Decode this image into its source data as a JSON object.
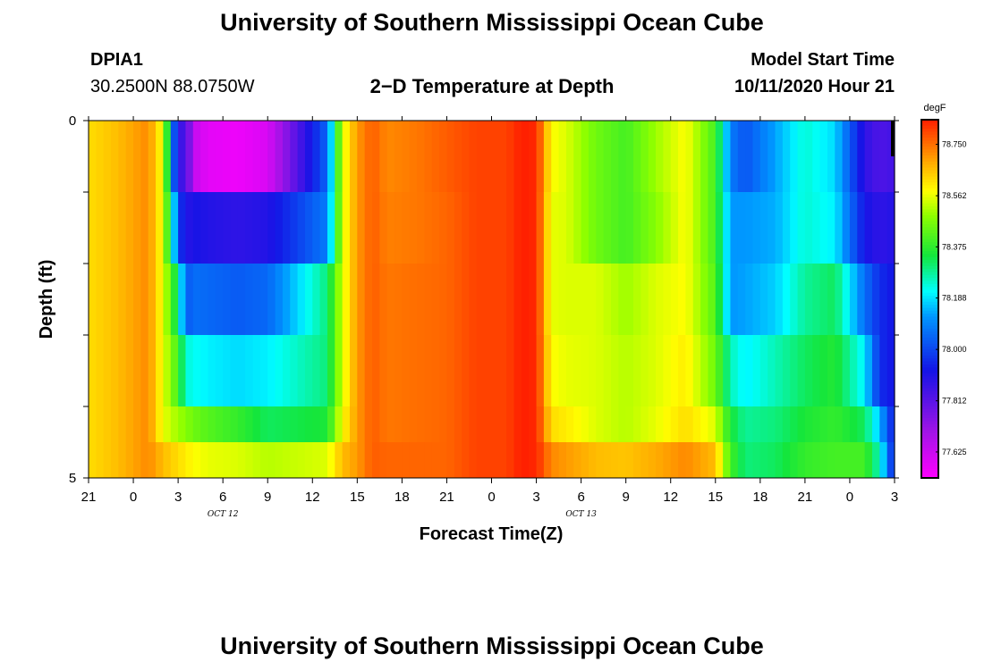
{
  "header": {
    "title": "University of Southern Mississippi Ocean Cube",
    "station_id": "DPIA1",
    "station_coords": "30.2500N 88.0750W",
    "plot_title": "2−D Temperature at Depth",
    "model_start_label": "Model Start Time",
    "model_start_value": "10/11/2020 Hour 21"
  },
  "footer": {
    "title": "University of Southern Mississippi Ocean Cube"
  },
  "chart_data": {
    "type": "heatmap",
    "title": "2−D Temperature at Depth",
    "xlabel": "Forecast Time(Z)",
    "ylabel": "Depth (ft)",
    "x_tick_labels": [
      "21",
      "0",
      "3",
      "6",
      "9",
      "12",
      "15",
      "18",
      "21",
      "0",
      "3",
      "6",
      "9",
      "12",
      "15",
      "18",
      "21",
      "0",
      "3"
    ],
    "x_date_labels": [
      {
        "text": "OCT 12",
        "hour_index": 3
      },
      {
        "text": "OCT 13",
        "hour_index": 11
      }
    ],
    "y_tick_labels": [
      {
        "label": "0",
        "value": 0
      },
      {
        "label": "5",
        "value": 5
      }
    ],
    "y_range": [
      0,
      5
    ],
    "x_range_hours": [
      0,
      54
    ],
    "depth_levels_ft": [
      0.0,
      1.0,
      2.0,
      3.0,
      4.0,
      4.5
    ],
    "colorbar": {
      "unit": "degF",
      "min": 77.53,
      "max": 78.84,
      "labels": [
        "78.750",
        "78.562",
        "78.375",
        "78.188",
        "78.000",
        "77.812",
        "77.625"
      ],
      "label_values": [
        78.75,
        78.562,
        78.375,
        78.188,
        78.0,
        77.812,
        77.625
      ]
    },
    "series": [
      {
        "name": "surface",
        "times": [
          0,
          2,
          4,
          5,
          6,
          6.5,
          7,
          8,
          10,
          12,
          16,
          17,
          18,
          19,
          20,
          22,
          24,
          26,
          28,
          29,
          30,
          31,
          32,
          34,
          36,
          38,
          40,
          42,
          43,
          44,
          46,
          48,
          50,
          52,
          53,
          54
        ],
        "values": [
          78.62,
          78.66,
          78.72,
          78.56,
          77.83,
          77.88,
          77.64,
          77.58,
          77.56,
          77.6,
          78.05,
          78.55,
          78.7,
          78.77,
          78.72,
          78.74,
          78.77,
          78.8,
          78.8,
          78.84,
          78.83,
          78.58,
          78.55,
          78.45,
          78.4,
          78.5,
          78.58,
          78.4,
          78.08,
          78.02,
          78.13,
          78.24,
          78.18,
          77.88,
          77.83,
          77.85
        ]
      },
      {
        "name": "1 ft",
        "times": [
          0,
          2,
          4,
          5,
          6,
          6.5,
          7,
          8,
          10,
          12,
          16,
          17,
          18,
          19,
          20,
          22,
          24,
          26,
          28,
          29,
          30,
          31,
          32,
          34,
          36,
          38,
          40,
          42,
          43,
          44,
          46,
          48,
          50,
          52,
          53,
          54
        ],
        "values": [
          78.62,
          78.66,
          78.72,
          78.56,
          78.02,
          77.88,
          77.92,
          77.9,
          77.88,
          77.9,
          78.08,
          78.55,
          78.7,
          78.77,
          78.73,
          78.74,
          78.76,
          78.8,
          78.8,
          78.84,
          78.83,
          78.56,
          78.55,
          78.45,
          78.4,
          78.48,
          78.58,
          78.4,
          78.12,
          78.12,
          78.14,
          78.24,
          78.2,
          77.92,
          77.88,
          77.9
        ]
      },
      {
        "name": "2 ft",
        "times": [
          0,
          2,
          4,
          5,
          6,
          6.5,
          7,
          8,
          10,
          12,
          16,
          17,
          18,
          19,
          20,
          22,
          24,
          26,
          28,
          29,
          30,
          31,
          32,
          34,
          36,
          38,
          40,
          42,
          43,
          44,
          46,
          48,
          50,
          52,
          53,
          54
        ],
        "values": [
          78.62,
          78.66,
          78.72,
          78.56,
          78.3,
          78.02,
          78.06,
          78.05,
          78.03,
          78.05,
          78.3,
          78.55,
          78.7,
          78.77,
          78.74,
          78.75,
          78.76,
          78.8,
          78.8,
          78.84,
          78.83,
          78.56,
          78.55,
          78.55,
          78.5,
          78.55,
          78.58,
          78.42,
          78.12,
          78.13,
          78.17,
          78.28,
          78.32,
          78.06,
          77.96,
          77.92
        ]
      },
      {
        "name": "3 ft",
        "times": [
          0,
          2,
          4,
          5,
          6,
          6.5,
          7,
          8,
          10,
          12,
          16,
          17,
          18,
          19,
          20,
          22,
          24,
          26,
          28,
          29,
          30,
          31,
          32,
          34,
          36,
          38,
          40,
          42,
          43,
          44,
          46,
          48,
          50,
          52,
          53,
          54
        ],
        "values": [
          78.62,
          78.66,
          78.72,
          78.56,
          78.4,
          78.24,
          78.22,
          78.2,
          78.18,
          78.2,
          78.3,
          78.55,
          78.7,
          78.77,
          78.74,
          78.75,
          78.76,
          78.8,
          78.8,
          78.84,
          78.83,
          78.58,
          78.56,
          78.55,
          78.52,
          78.55,
          78.6,
          78.45,
          78.26,
          78.2,
          78.26,
          78.32,
          78.36,
          78.2,
          77.96,
          77.92
        ]
      },
      {
        "name": "4 ft",
        "times": [
          0,
          2,
          4,
          5,
          6,
          6.5,
          7,
          8,
          10,
          12,
          16,
          17,
          18,
          19,
          20,
          22,
          24,
          26,
          28,
          29,
          30,
          31,
          32,
          34,
          36,
          38,
          40,
          42,
          43,
          44,
          46,
          48,
          50,
          52,
          53,
          54
        ],
        "values": [
          78.62,
          78.66,
          78.72,
          78.56,
          78.5,
          78.48,
          78.45,
          78.42,
          78.38,
          78.32,
          78.35,
          78.58,
          78.7,
          78.77,
          78.74,
          78.75,
          78.76,
          78.8,
          78.8,
          78.84,
          78.83,
          78.62,
          78.6,
          78.55,
          78.52,
          78.56,
          78.62,
          78.55,
          78.35,
          78.28,
          78.3,
          78.35,
          78.38,
          78.32,
          78.15,
          77.92
        ]
      },
      {
        "name": "4.5 ft",
        "times": [
          0,
          2,
          4,
          5,
          6,
          6.5,
          7,
          8,
          10,
          12,
          16,
          17,
          18,
          19,
          20,
          22,
          24,
          26,
          28,
          29,
          30,
          31,
          32,
          34,
          36,
          38,
          40,
          42,
          43,
          44,
          46,
          48,
          50,
          52,
          53,
          54
        ],
        "values": [
          78.62,
          78.66,
          78.72,
          78.66,
          78.62,
          78.6,
          78.58,
          78.56,
          78.55,
          78.52,
          78.55,
          78.66,
          78.7,
          78.77,
          78.76,
          78.76,
          78.76,
          78.8,
          78.8,
          78.84,
          78.83,
          78.72,
          78.7,
          78.66,
          78.65,
          78.68,
          78.72,
          78.66,
          78.4,
          78.3,
          78.32,
          78.38,
          78.4,
          78.4,
          78.25,
          77.92
        ]
      }
    ]
  }
}
